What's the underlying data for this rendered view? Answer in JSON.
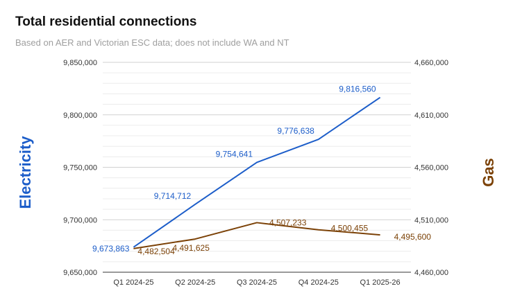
{
  "chart_data": {
    "type": "line",
    "title": "Total residential connections",
    "subtitle": "Based on AER and Victorian ESC data; does not include WA and NT",
    "categories": [
      "Q1 2024-25",
      "Q2 2024-25",
      "Q3 2024-25",
      "Q4 2024-25",
      "Q1 2025-26"
    ],
    "y_left": {
      "label": "Electricity",
      "ylim": [
        9650000,
        9850000
      ],
      "ticks": [
        "9,650,000",
        "9,700,000",
        "9,750,000",
        "9,800,000",
        "9,850,000"
      ]
    },
    "y_right": {
      "label": "Gas",
      "ylim": [
        4460000,
        4660000
      ],
      "ticks": [
        "4,460,000",
        "4,510,000",
        "4,560,000",
        "4,610,000",
        "4,660,000"
      ]
    },
    "grid": true,
    "series": [
      {
        "name": "Electricity",
        "axis": "left",
        "color": "#1c5dc9",
        "values": [
          9673863,
          9714712,
          9754641,
          9776638,
          9816560
        ],
        "labels": [
          "9,673,863",
          "9,714,712",
          "9,754,641",
          "9,776,638",
          "9,816,560"
        ]
      },
      {
        "name": "Gas",
        "axis": "right",
        "color": "#7b4106",
        "values": [
          4482504,
          4491625,
          4507233,
          4500455,
          4495600
        ],
        "labels": [
          "4,482,504",
          "4,491,625",
          "4,507,233",
          "4,500,455",
          "4,495,600"
        ]
      }
    ]
  }
}
